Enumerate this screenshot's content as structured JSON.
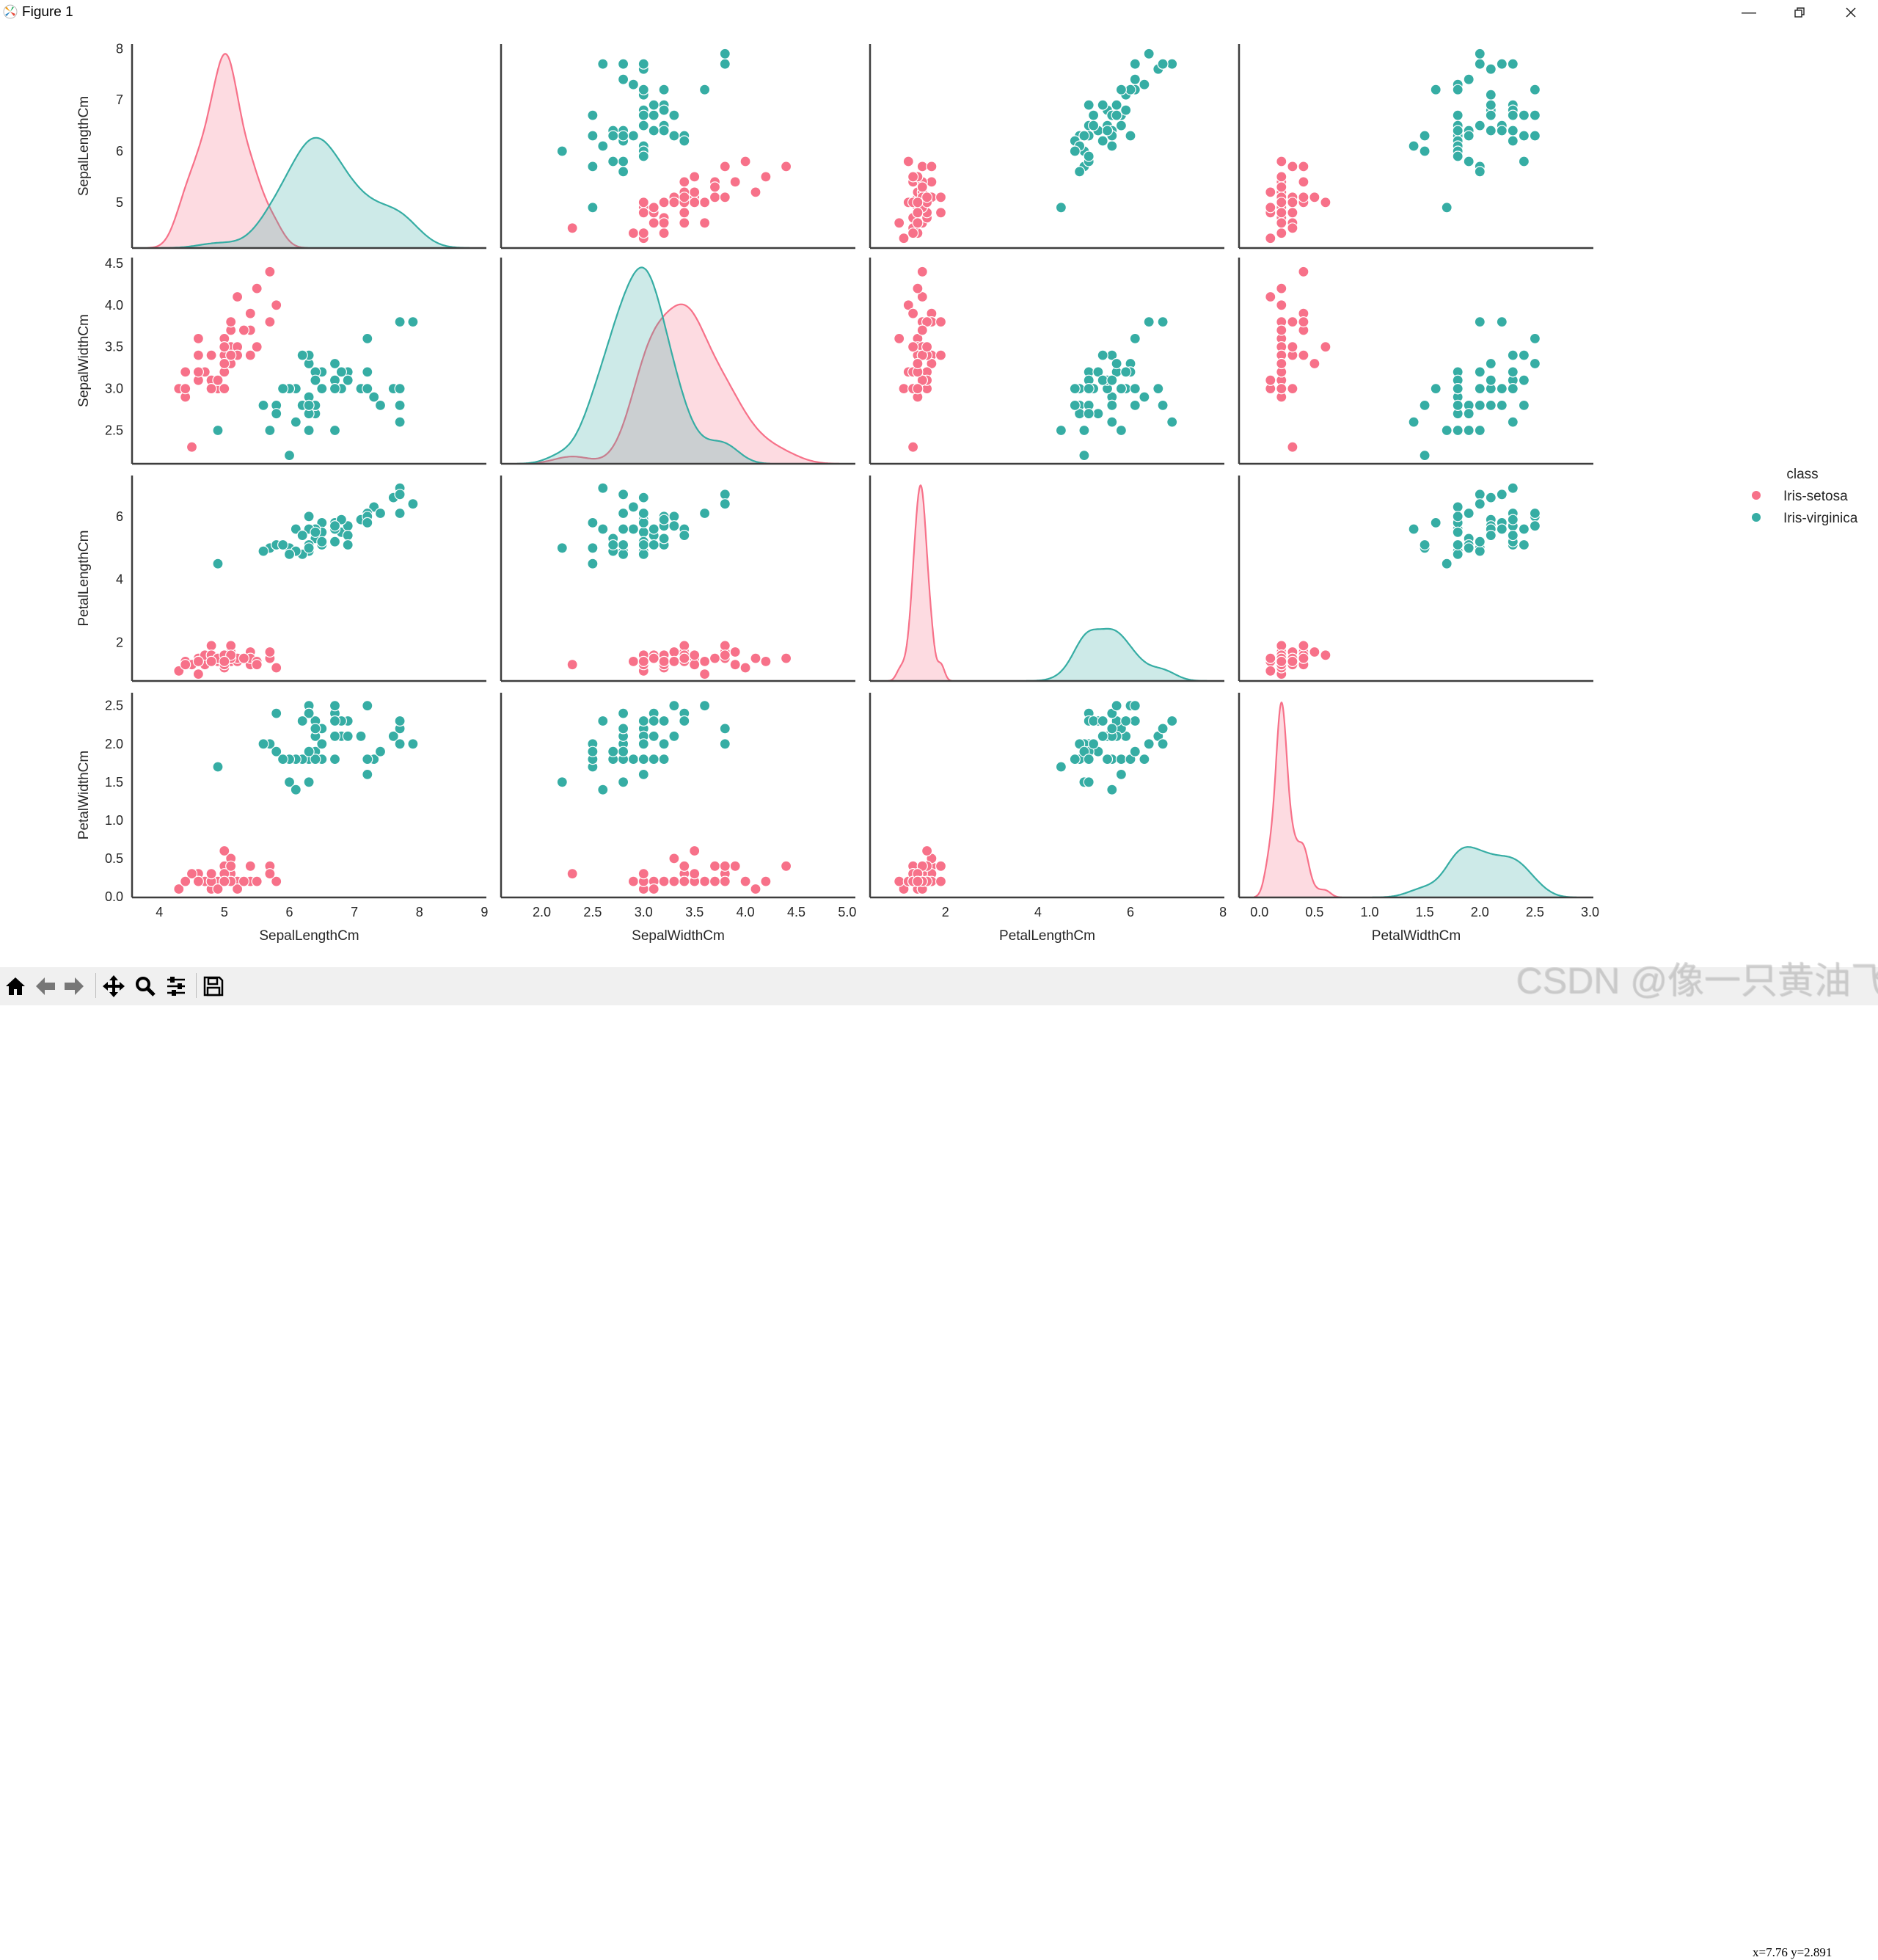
{
  "window": {
    "title": "Figure 1",
    "controls": [
      "minimize",
      "restore",
      "close"
    ]
  },
  "toolbar": {
    "buttons": [
      "home",
      "back",
      "forward",
      "pan",
      "zoom",
      "configure-subplots",
      "save"
    ],
    "coords_readout": "x=7.76  y=2.891"
  },
  "watermark": "CSDN @像一只黄油飞",
  "chart_data": {
    "type": "scatter",
    "kind": "pairplot",
    "diagonal": "kde",
    "variables": [
      "SepalLengthCm",
      "SepalWidthCm",
      "PetalLengthCm",
      "PetalWidthCm"
    ],
    "axis_ranges": {
      "SepalLengthCm": {
        "x": [
          3.58,
          9.03
        ],
        "y": [
          4.11,
          8.09
        ]
      },
      "SepalWidthCm": {
        "x": [
          1.6,
          5.08
        ],
        "y": [
          2.1,
          4.57
        ]
      },
      "PetalLengthCm": {
        "x": [
          0.37,
          8.03
        ],
        "y": [
          0.78,
          7.3
        ]
      },
      "PetalWidthCm": {
        "x": [
          -0.185,
          3.03
        ],
        "y": [
          -0.01,
          2.67
        ]
      }
    },
    "x_ticks": {
      "SepalLengthCm": [
        "4",
        "5",
        "6",
        "7",
        "8",
        "9"
      ],
      "SepalWidthCm": [
        "2.0",
        "2.5",
        "3.0",
        "3.5",
        "4.0",
        "4.5",
        "5.0"
      ],
      "PetalLengthCm": [
        "2",
        "4",
        "6",
        "8"
      ],
      "PetalWidthCm": [
        "0.0",
        "0.5",
        "1.0",
        "1.5",
        "2.0",
        "2.5",
        "3.0"
      ]
    },
    "y_ticks": {
      "SepalLengthCm": [
        "5",
        "6",
        "7",
        "8"
      ],
      "SepalWidthCm": [
        "2.5",
        "3.0",
        "3.5",
        "4.0",
        "4.5"
      ],
      "PetalLengthCm": [
        "2",
        "4",
        "6"
      ],
      "PetalWidthCm": [
        "0.0",
        "0.5",
        "1.0",
        "1.5",
        "2.0",
        "2.5"
      ]
    },
    "grid": false,
    "legend": {
      "title": "class",
      "placement": "right"
    },
    "series": [
      {
        "name": "Iris-setosa",
        "color": "#f77189",
        "points": [
          [
            5.1,
            3.5,
            1.4,
            0.2
          ],
          [
            4.9,
            3.0,
            1.4,
            0.2
          ],
          [
            4.7,
            3.2,
            1.3,
            0.2
          ],
          [
            4.6,
            3.1,
            1.5,
            0.2
          ],
          [
            5.0,
            3.6,
            1.4,
            0.2
          ],
          [
            5.4,
            3.9,
            1.7,
            0.4
          ],
          [
            4.6,
            3.4,
            1.4,
            0.3
          ],
          [
            5.0,
            3.4,
            1.5,
            0.2
          ],
          [
            4.4,
            2.9,
            1.4,
            0.2
          ],
          [
            4.9,
            3.1,
            1.5,
            0.1
          ],
          [
            5.4,
            3.7,
            1.5,
            0.2
          ],
          [
            4.8,
            3.4,
            1.6,
            0.2
          ],
          [
            4.8,
            3.0,
            1.4,
            0.1
          ],
          [
            4.3,
            3.0,
            1.1,
            0.1
          ],
          [
            5.8,
            4.0,
            1.2,
            0.2
          ],
          [
            5.7,
            4.4,
            1.5,
            0.4
          ],
          [
            5.4,
            3.9,
            1.3,
            0.4
          ],
          [
            5.1,
            3.5,
            1.4,
            0.3
          ],
          [
            5.7,
            3.8,
            1.7,
            0.3
          ],
          [
            5.1,
            3.8,
            1.5,
            0.3
          ],
          [
            5.4,
            3.4,
            1.7,
            0.2
          ],
          [
            5.1,
            3.7,
            1.5,
            0.4
          ],
          [
            4.6,
            3.6,
            1.0,
            0.2
          ],
          [
            5.1,
            3.3,
            1.7,
            0.5
          ],
          [
            4.8,
            3.4,
            1.9,
            0.2
          ],
          [
            5.0,
            3.0,
            1.6,
            0.2
          ],
          [
            5.0,
            3.4,
            1.6,
            0.4
          ],
          [
            5.2,
            3.5,
            1.5,
            0.2
          ],
          [
            5.2,
            3.4,
            1.4,
            0.2
          ],
          [
            4.7,
            3.2,
            1.6,
            0.2
          ],
          [
            4.8,
            3.1,
            1.6,
            0.2
          ],
          [
            5.4,
            3.4,
            1.5,
            0.4
          ],
          [
            5.2,
            4.1,
            1.5,
            0.1
          ],
          [
            5.5,
            4.2,
            1.4,
            0.2
          ],
          [
            4.9,
            3.1,
            1.5,
            0.1
          ],
          [
            5.0,
            3.2,
            1.2,
            0.2
          ],
          [
            5.5,
            3.5,
            1.3,
            0.2
          ],
          [
            4.9,
            3.1,
            1.5,
            0.1
          ],
          [
            4.4,
            3.0,
            1.3,
            0.2
          ],
          [
            5.1,
            3.4,
            1.5,
            0.2
          ],
          [
            5.0,
            3.5,
            1.3,
            0.3
          ],
          [
            4.5,
            2.3,
            1.3,
            0.3
          ],
          [
            4.4,
            3.2,
            1.3,
            0.2
          ],
          [
            5.0,
            3.5,
            1.6,
            0.6
          ],
          [
            5.1,
            3.8,
            1.9,
            0.4
          ],
          [
            4.8,
            3.0,
            1.4,
            0.3
          ],
          [
            5.1,
            3.8,
            1.6,
            0.2
          ],
          [
            4.6,
            3.2,
            1.4,
            0.2
          ],
          [
            5.3,
            3.7,
            1.5,
            0.2
          ],
          [
            5.0,
            3.3,
            1.4,
            0.2
          ]
        ]
      },
      {
        "name": "Iris-virginica",
        "color": "#36ada4",
        "points": [
          [
            6.3,
            3.3,
            6.0,
            2.5
          ],
          [
            5.8,
            2.7,
            5.1,
            1.9
          ],
          [
            7.1,
            3.0,
            5.9,
            2.1
          ],
          [
            6.3,
            2.9,
            5.6,
            1.8
          ],
          [
            6.5,
            3.0,
            5.8,
            2.2
          ],
          [
            7.6,
            3.0,
            6.6,
            2.1
          ],
          [
            4.9,
            2.5,
            4.5,
            1.7
          ],
          [
            7.3,
            2.9,
            6.3,
            1.8
          ],
          [
            6.7,
            2.5,
            5.8,
            1.8
          ],
          [
            7.2,
            3.6,
            6.1,
            2.5
          ],
          [
            6.5,
            3.2,
            5.1,
            2.0
          ],
          [
            6.4,
            2.7,
            5.3,
            1.9
          ],
          [
            6.8,
            3.0,
            5.5,
            2.1
          ],
          [
            5.7,
            2.5,
            5.0,
            2.0
          ],
          [
            5.8,
            2.8,
            5.1,
            2.4
          ],
          [
            6.4,
            3.2,
            5.3,
            2.3
          ],
          [
            6.5,
            3.0,
            5.5,
            1.8
          ],
          [
            7.7,
            3.8,
            6.7,
            2.2
          ],
          [
            7.7,
            2.6,
            6.9,
            2.3
          ],
          [
            6.0,
            2.2,
            5.0,
            1.5
          ],
          [
            6.9,
            3.2,
            5.7,
            2.3
          ],
          [
            5.6,
            2.8,
            4.9,
            2.0
          ],
          [
            7.7,
            2.8,
            6.7,
            2.0
          ],
          [
            6.3,
            2.7,
            4.9,
            1.8
          ],
          [
            6.7,
            3.3,
            5.7,
            2.1
          ],
          [
            7.2,
            3.2,
            6.0,
            1.8
          ],
          [
            6.2,
            2.8,
            4.8,
            1.8
          ],
          [
            6.1,
            3.0,
            4.9,
            1.8
          ],
          [
            6.4,
            2.8,
            5.6,
            2.1
          ],
          [
            7.2,
            3.0,
            5.8,
            1.6
          ],
          [
            7.4,
            2.8,
            6.1,
            1.9
          ],
          [
            7.9,
            3.8,
            6.4,
            2.0
          ],
          [
            6.4,
            2.8,
            5.6,
            2.2
          ],
          [
            6.3,
            2.8,
            5.1,
            1.5
          ],
          [
            6.1,
            2.6,
            5.6,
            1.4
          ],
          [
            7.7,
            3.0,
            6.1,
            2.3
          ],
          [
            6.3,
            3.4,
            5.6,
            2.4
          ],
          [
            6.4,
            3.1,
            5.5,
            1.8
          ],
          [
            6.0,
            3.0,
            4.8,
            1.8
          ],
          [
            6.9,
            3.1,
            5.4,
            2.1
          ],
          [
            6.7,
            3.1,
            5.6,
            2.4
          ],
          [
            6.9,
            3.1,
            5.1,
            2.3
          ],
          [
            5.8,
            2.7,
            5.1,
            1.9
          ],
          [
            6.8,
            3.2,
            5.9,
            2.3
          ],
          [
            6.7,
            3.3,
            5.7,
            2.5
          ],
          [
            6.7,
            3.0,
            5.2,
            2.3
          ],
          [
            6.3,
            2.5,
            5.0,
            1.9
          ],
          [
            6.5,
            3.0,
            5.2,
            2.0
          ],
          [
            6.2,
            3.4,
            5.4,
            2.3
          ],
          [
            5.9,
            3.0,
            5.1,
            1.8
          ]
        ]
      }
    ]
  }
}
